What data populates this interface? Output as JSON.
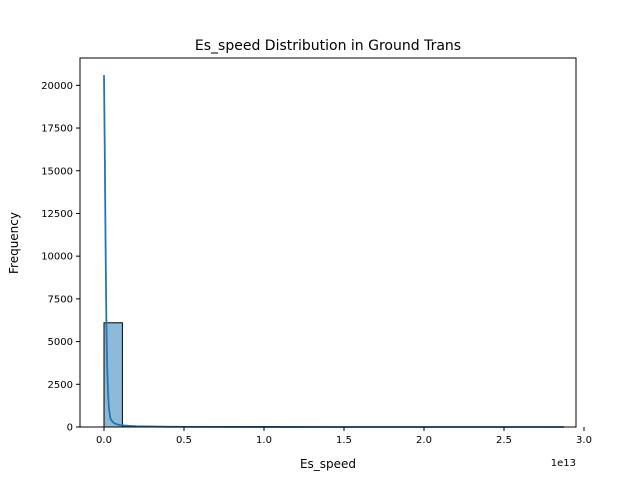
{
  "chart_data": {
    "type": "histogram",
    "title": "Es_speed Distribution in Ground Trans",
    "xlabel": "Es_speed",
    "ylabel": "Frequency",
    "x_scale_label": "1e13",
    "xlim": [
      -0.15,
      2.95
    ],
    "ylim": [
      0,
      21600
    ],
    "x_ticks": [
      0.0,
      0.5,
      1.0,
      1.5,
      2.0,
      2.5,
      3.0
    ],
    "x_tick_labels": [
      "0.0",
      "0.5",
      "1.0",
      "1.5",
      "2.0",
      "2.5",
      "3.0"
    ],
    "y_ticks": [
      0,
      2500,
      5000,
      7500,
      10000,
      12500,
      15000,
      17500,
      20000
    ],
    "y_tick_labels": [
      "0",
      "2500",
      "5000",
      "7500",
      "10000",
      "12500",
      "15000",
      "17500",
      "20000"
    ],
    "grid": false,
    "bars": [
      {
        "x0": 0.0,
        "x1": 0.115,
        "count": 6100
      },
      {
        "x0": 0.115,
        "x1": 0.23,
        "count": 30
      },
      {
        "x0": 0.23,
        "x1": 0.345,
        "count": 10
      },
      {
        "x0": 0.345,
        "x1": 0.46,
        "count": 4
      },
      {
        "x0": 0.46,
        "x1": 0.575,
        "count": 2
      },
      {
        "x0": 0.575,
        "x1": 0.69,
        "count": 1
      },
      {
        "x0": 0.69,
        "x1": 0.805,
        "count": 1
      },
      {
        "x0": 0.805,
        "x1": 0.92,
        "count": 0
      },
      {
        "x0": 0.92,
        "x1": 1.035,
        "count": 0
      },
      {
        "x0": 1.035,
        "x1": 1.15,
        "count": 0
      },
      {
        "x0": 1.15,
        "x1": 1.265,
        "count": 0
      },
      {
        "x0": 1.265,
        "x1": 1.38,
        "count": 0
      },
      {
        "x0": 1.38,
        "x1": 1.495,
        "count": 0
      },
      {
        "x0": 1.495,
        "x1": 1.61,
        "count": 0
      },
      {
        "x0": 1.61,
        "x1": 1.725,
        "count": 0
      },
      {
        "x0": 1.725,
        "x1": 1.84,
        "count": 0
      },
      {
        "x0": 1.84,
        "x1": 1.955,
        "count": 0
      },
      {
        "x0": 1.955,
        "x1": 2.07,
        "count": 0
      },
      {
        "x0": 2.07,
        "x1": 2.185,
        "count": 0
      },
      {
        "x0": 2.185,
        "x1": 2.3,
        "count": 0
      },
      {
        "x0": 2.3,
        "x1": 2.415,
        "count": 0
      },
      {
        "x0": 2.415,
        "x1": 2.53,
        "count": 0
      },
      {
        "x0": 2.53,
        "x1": 2.645,
        "count": 0
      },
      {
        "x0": 2.645,
        "x1": 2.76,
        "count": 0
      },
      {
        "x0": 2.76,
        "x1": 2.875,
        "count": 1
      }
    ],
    "kde": {
      "x": [
        0.0,
        0.005,
        0.01,
        0.015,
        0.02,
        0.025,
        0.03,
        0.035,
        0.04,
        0.05,
        0.06,
        0.08,
        0.1,
        0.15,
        0.2,
        0.3,
        0.4,
        0.6,
        1.0,
        1.5,
        2.0,
        2.5,
        2.875
      ],
      "y": [
        20600,
        16000,
        10500,
        6000,
        3500,
        2100,
        1200,
        800,
        500,
        350,
        250,
        160,
        110,
        70,
        45,
        25,
        15,
        8,
        4,
        2,
        1,
        1,
        0
      ]
    },
    "colors": {
      "bar_fill": "#8ebad9",
      "bar_edge": "#000000",
      "kde_line": "#1f77b4"
    }
  }
}
